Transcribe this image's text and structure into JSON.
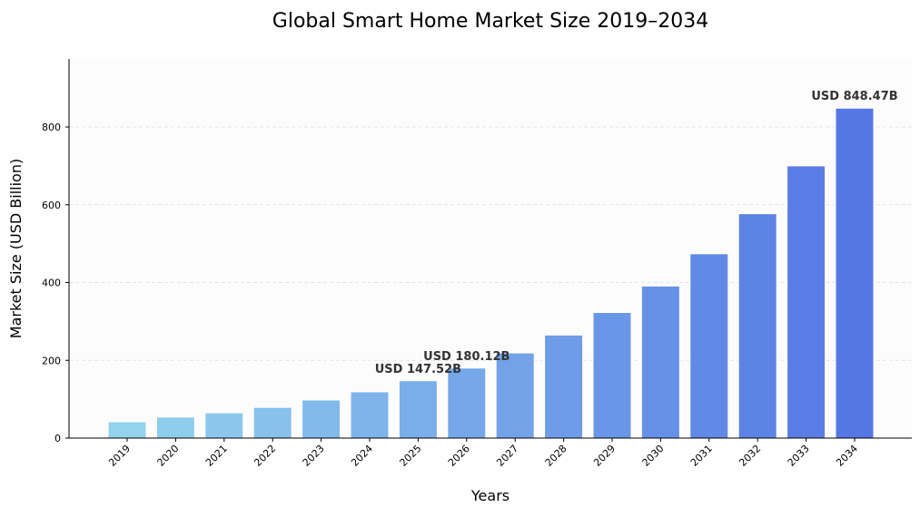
{
  "chart_data": {
    "type": "bar",
    "title": "Global Smart Home Market Size 2019–2034",
    "xlabel": "Years",
    "ylabel": "Market Size (USD Billion)",
    "categories": [
      "2019",
      "2020",
      "2021",
      "2022",
      "2023",
      "2024",
      "2025",
      "2026",
      "2027",
      "2028",
      "2029",
      "2030",
      "2031",
      "2032",
      "2033",
      "2034"
    ],
    "values": [
      42,
      54,
      65,
      79,
      98,
      119,
      147.52,
      180.12,
      219,
      265,
      323,
      391,
      474,
      577,
      700,
      848.47
    ],
    "ylim": [
      0,
      975
    ],
    "yticks": [
      0,
      200,
      400,
      600,
      800
    ],
    "grid": true,
    "colors": {
      "start": "#93d3ee",
      "end": "#5577e3"
    },
    "annotations": [
      {
        "category": "2025",
        "text": "USD 147.52B"
      },
      {
        "category": "2026",
        "text": "USD 180.12B"
      },
      {
        "category": "2034",
        "text": "USD 848.47B"
      }
    ]
  }
}
